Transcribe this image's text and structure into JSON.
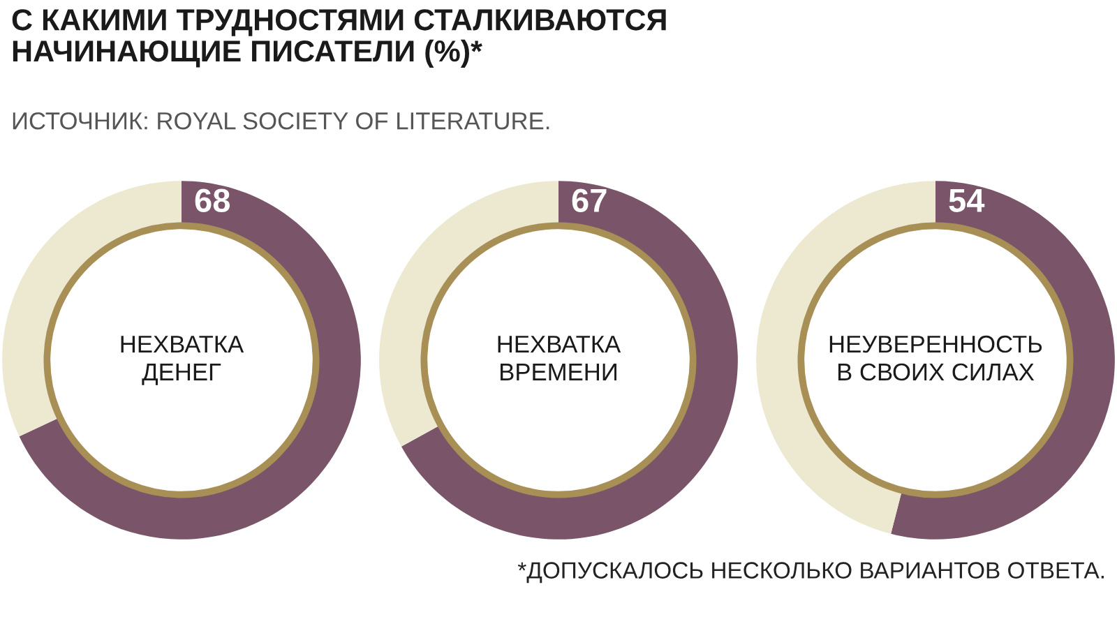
{
  "chart_data": [
    {
      "type": "other",
      "title": "С КАКИМИ ТРУДНОСТЯМИ СТАЛКИВАЮТСЯ\nНАЧИНАЮЩИЕ ПИСАТЕЛИ (%)*",
      "subtitle": "ИСТОЧНИК: ROYAL SOCIETY OF LITERATURE.",
      "annotations": [
        "*ДОПУСКАЛОСЬ НЕСКОЛЬКО ВАРИАНТОВ ОТВЕТА."
      ]
    },
    {
      "type": "donut",
      "title": "НЕХВАТКА\nДЕНЕГ",
      "categories": [
        null,
        null
      ],
      "values": [
        68,
        32
      ],
      "colors": [
        "#7a5569",
        "#ece9d0"
      ],
      "value_labels": [
        "68",
        null
      ]
    },
    {
      "type": "donut",
      "title": "НЕХВАТКА\nВРЕМЕНИ",
      "categories": [
        null,
        null
      ],
      "values": [
        67,
        33
      ],
      "colors": [
        "#7a5569",
        "#ece9d0"
      ],
      "value_labels": [
        "67",
        null
      ]
    },
    {
      "type": "donut",
      "title": "НЕУВЕРЕННОСТЬ\nВ СВОИХ СИЛАХ",
      "categories": [
        null,
        null
      ],
      "values": [
        54,
        46
      ],
      "colors": [
        "#7a5569",
        "#ece9d0"
      ],
      "value_labels": [
        "54",
        null
      ]
    }
  ]
}
